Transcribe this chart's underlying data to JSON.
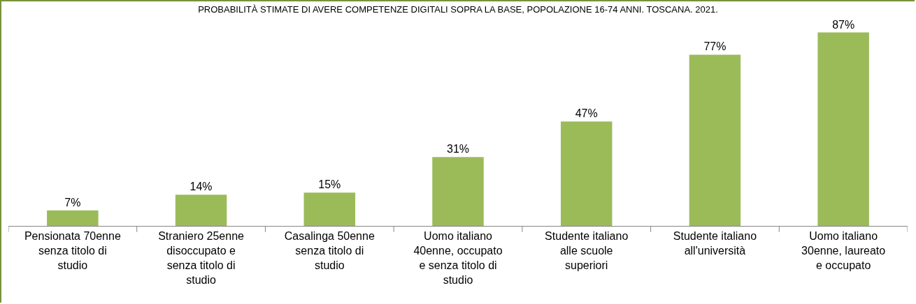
{
  "chart_data": {
    "type": "bar",
    "title": "PROBABILITÀ STIMATE DI AVERE COMPETENZE DIGITALI SOPRA LA BASE, POPOLAZIONE 16-74 ANNI. TOSCANA. 2021.",
    "categories": [
      "Pensionata 70enne senza titolo di studio",
      "Straniero 25enne disoccupato e senza titolo di studio",
      "Casalinga 50enne senza titolo di studio",
      "Uomo italiano 40enne, occupato e senza titolo di studio",
      "Studente italiano alle scuole superiori",
      "Studente italiano all'università",
      "Uomo italiano 30enne, laureato e occupato"
    ],
    "values": [
      7,
      14,
      15,
      31,
      47,
      77,
      87
    ],
    "value_labels": [
      "7%",
      "14%",
      "15%",
      "31%",
      "47%",
      "77%",
      "87%"
    ],
    "color": "#9bbb59",
    "grid": false,
    "legend": false
  }
}
